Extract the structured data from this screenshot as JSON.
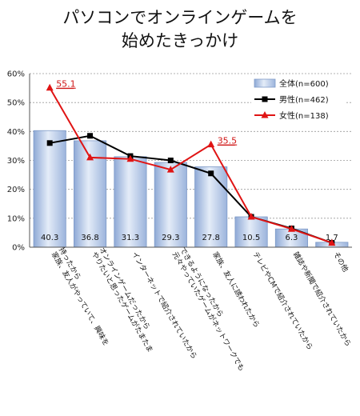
{
  "chart_data": {
    "type": "bar",
    "title_lines": [
      "パソコンでオンラインゲームを",
      "始めたきっかけ"
    ],
    "categories": [
      [
        "家族、友人がやっていて、興味を",
        "持ったから"
      ],
      [
        "やりたいと思ったゲームがたまたま",
        "オンラインゲームだったから"
      ],
      [
        "インターネットで紹介されていたから"
      ],
      [
        "元々やっていたゲームがネットワークでも",
        "できるようになったから"
      ],
      [
        "家族、友人に誘われたから"
      ],
      [
        "テレビやCMで紹介されていたから"
      ],
      [
        "雑誌や新聞で紹介されていたから"
      ],
      [
        "その他"
      ]
    ],
    "y_ticks": [
      "0%",
      "10%",
      "20%",
      "30%",
      "40%",
      "50%",
      "60%"
    ],
    "ylim": [
      0,
      60
    ],
    "legend_position": "top-right",
    "series": [
      {
        "name": "全体(n=600)",
        "kind": "bar",
        "values": [
          40.3,
          36.8,
          31.3,
          29.3,
          27.8,
          10.5,
          6.3,
          1.7
        ],
        "labels": [
          "40.3",
          "36.8",
          "31.3",
          "29.3",
          "27.8",
          "10.5",
          "6.3",
          "1.7"
        ],
        "color": "#b8cbe8"
      },
      {
        "name": "男性(n=462)",
        "kind": "line",
        "marker": "square",
        "values": [
          36.0,
          38.5,
          31.5,
          30.0,
          25.5,
          10.5,
          6.5,
          1.5
        ],
        "color": "#000000"
      },
      {
        "name": "女性(n=138)",
        "kind": "line",
        "marker": "triangle",
        "values": [
          55.1,
          31.0,
          30.5,
          26.8,
          35.5,
          10.5,
          6.3,
          1.5
        ],
        "color": "#e01414"
      }
    ],
    "annotations": [
      {
        "series": 2,
        "index": 0,
        "text": "55.1"
      },
      {
        "series": 2,
        "index": 4,
        "text": "35.5"
      }
    ]
  }
}
